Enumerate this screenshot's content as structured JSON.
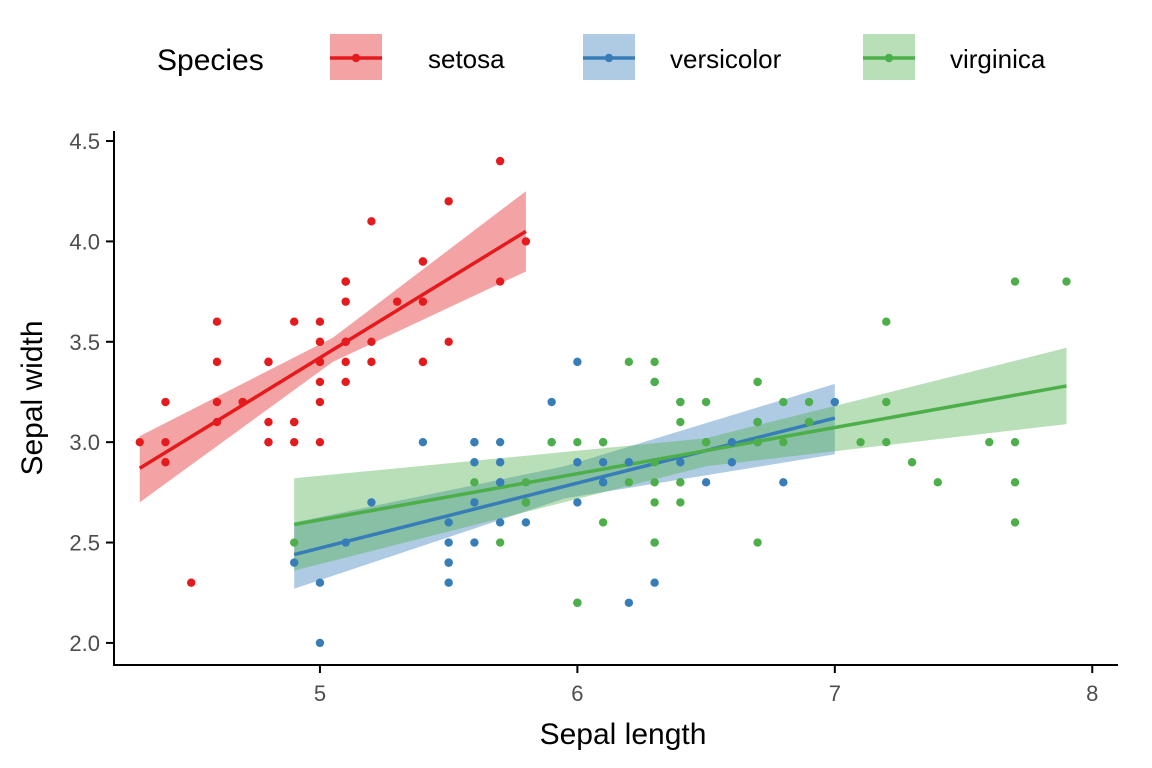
{
  "chart_data": {
    "type": "scatter",
    "xlabel": "Sepal length",
    "ylabel": "Sepal width",
    "xlim": [
      4.2,
      8.1
    ],
    "ylim": [
      1.89,
      4.55
    ],
    "x_ticks": [
      5,
      6,
      7,
      8
    ],
    "y_ticks": [
      2.0,
      2.5,
      3.0,
      3.5,
      4.0,
      4.5
    ],
    "x_tick_labels": [
      "5",
      "6",
      "7",
      "8"
    ],
    "y_tick_labels": [
      "2.0",
      "2.5",
      "3.0",
      "3.5",
      "4.0",
      "4.5"
    ],
    "grid": false,
    "legend": {
      "position": "top",
      "title": "Species"
    },
    "series": [
      {
        "name": "setosa",
        "color": "#E41A1C",
        "fit": {
          "x": [
            4.3,
            5.8
          ],
          "y": [
            2.87,
            4.05
          ]
        },
        "band": {
          "x": [
            4.3,
            5.05,
            5.8
          ],
          "lower": [
            2.7,
            3.4,
            3.85
          ],
          "upper": [
            3.03,
            3.52,
            4.25
          ]
        },
        "points": [
          [
            5.1,
            3.5
          ],
          [
            4.9,
            3.0
          ],
          [
            4.7,
            3.2
          ],
          [
            4.6,
            3.1
          ],
          [
            5.0,
            3.6
          ],
          [
            5.4,
            3.9
          ],
          [
            4.6,
            3.4
          ],
          [
            5.0,
            3.4
          ],
          [
            4.4,
            2.9
          ],
          [
            4.9,
            3.1
          ],
          [
            5.4,
            3.7
          ],
          [
            4.8,
            3.4
          ],
          [
            4.8,
            3.0
          ],
          [
            4.3,
            3.0
          ],
          [
            5.8,
            4.0
          ],
          [
            5.7,
            4.4
          ],
          [
            5.4,
            3.9
          ],
          [
            5.1,
            3.5
          ],
          [
            5.7,
            3.8
          ],
          [
            5.1,
            3.8
          ],
          [
            5.4,
            3.4
          ],
          [
            5.1,
            3.7
          ],
          [
            4.6,
            3.6
          ],
          [
            5.1,
            3.3
          ],
          [
            4.8,
            3.4
          ],
          [
            5.0,
            3.0
          ],
          [
            5.0,
            3.4
          ],
          [
            5.2,
            3.5
          ],
          [
            5.2,
            3.4
          ],
          [
            4.7,
            3.2
          ],
          [
            4.8,
            3.1
          ],
          [
            5.4,
            3.4
          ],
          [
            5.2,
            4.1
          ],
          [
            5.5,
            4.2
          ],
          [
            4.9,
            3.1
          ],
          [
            5.0,
            3.2
          ],
          [
            5.5,
            3.5
          ],
          [
            4.9,
            3.6
          ],
          [
            4.4,
            3.0
          ],
          [
            5.1,
            3.4
          ],
          [
            5.0,
            3.5
          ],
          [
            4.5,
            2.3
          ],
          [
            4.4,
            3.2
          ],
          [
            5.0,
            3.5
          ],
          [
            5.1,
            3.8
          ],
          [
            4.8,
            3.0
          ],
          [
            5.1,
            3.8
          ],
          [
            4.6,
            3.2
          ],
          [
            5.3,
            3.7
          ],
          [
            5.0,
            3.3
          ]
        ]
      },
      {
        "name": "versicolor",
        "color": "#377EB8",
        "fit": {
          "x": [
            4.9,
            7.0
          ],
          "y": [
            2.44,
            3.12
          ]
        },
        "band": {
          "x": [
            4.9,
            5.95,
            7.0
          ],
          "lower": [
            2.27,
            2.72,
            2.94
          ],
          "upper": [
            2.6,
            2.88,
            3.29
          ]
        },
        "points": [
          [
            7.0,
            3.2
          ],
          [
            6.4,
            3.2
          ],
          [
            6.9,
            3.1
          ],
          [
            5.5,
            2.3
          ],
          [
            6.5,
            2.8
          ],
          [
            5.7,
            2.8
          ],
          [
            6.3,
            3.3
          ],
          [
            4.9,
            2.4
          ],
          [
            6.6,
            2.9
          ],
          [
            5.2,
            2.7
          ],
          [
            5.0,
            2.0
          ],
          [
            5.9,
            3.0
          ],
          [
            6.0,
            2.2
          ],
          [
            6.1,
            2.9
          ],
          [
            5.6,
            2.9
          ],
          [
            6.7,
            3.1
          ],
          [
            5.6,
            3.0
          ],
          [
            5.8,
            2.7
          ],
          [
            6.2,
            2.2
          ],
          [
            5.6,
            2.5
          ],
          [
            5.9,
            3.2
          ],
          [
            6.1,
            2.8
          ],
          [
            6.3,
            2.5
          ],
          [
            6.1,
            2.8
          ],
          [
            6.4,
            2.9
          ],
          [
            6.6,
            3.0
          ],
          [
            6.8,
            2.8
          ],
          [
            6.7,
            3.0
          ],
          [
            6.0,
            2.9
          ],
          [
            5.7,
            2.6
          ],
          [
            5.5,
            2.4
          ],
          [
            5.5,
            2.4
          ],
          [
            5.8,
            2.7
          ],
          [
            6.0,
            2.7
          ],
          [
            5.4,
            3.0
          ],
          [
            6.0,
            3.4
          ],
          [
            6.7,
            3.1
          ],
          [
            6.3,
            2.3
          ],
          [
            5.6,
            3.0
          ],
          [
            5.5,
            2.5
          ],
          [
            5.5,
            2.6
          ],
          [
            6.1,
            3.0
          ],
          [
            5.8,
            2.6
          ],
          [
            5.0,
            2.3
          ],
          [
            5.6,
            2.7
          ],
          [
            5.7,
            3.0
          ],
          [
            5.7,
            2.9
          ],
          [
            6.2,
            2.9
          ],
          [
            5.1,
            2.5
          ],
          [
            5.7,
            2.8
          ]
        ]
      },
      {
        "name": "virginica",
        "color": "#4DAF4A",
        "fit": {
          "x": [
            4.9,
            7.9
          ],
          "y": [
            2.59,
            3.28
          ]
        },
        "band": {
          "x": [
            4.9,
            6.5,
            7.9
          ],
          "lower": [
            2.36,
            2.88,
            3.09
          ],
          "upper": [
            2.82,
            3.02,
            3.47
          ]
        },
        "points": [
          [
            6.3,
            3.3
          ],
          [
            5.8,
            2.7
          ],
          [
            7.1,
            3.0
          ],
          [
            6.3,
            2.9
          ],
          [
            6.5,
            3.0
          ],
          [
            7.6,
            3.0
          ],
          [
            4.9,
            2.5
          ],
          [
            7.3,
            2.9
          ],
          [
            6.7,
            2.5
          ],
          [
            7.2,
            3.6
          ],
          [
            6.5,
            3.2
          ],
          [
            6.4,
            2.7
          ],
          [
            6.8,
            3.0
          ],
          [
            5.7,
            2.5
          ],
          [
            5.8,
            2.8
          ],
          [
            6.4,
            3.2
          ],
          [
            6.5,
            3.0
          ],
          [
            7.7,
            3.8
          ],
          [
            7.7,
            2.6
          ],
          [
            6.0,
            2.2
          ],
          [
            6.9,
            3.2
          ],
          [
            5.6,
            2.8
          ],
          [
            7.7,
            2.8
          ],
          [
            6.3,
            2.7
          ],
          [
            6.7,
            3.3
          ],
          [
            7.2,
            3.2
          ],
          [
            6.2,
            2.8
          ],
          [
            6.1,
            3.0
          ],
          [
            6.4,
            2.8
          ],
          [
            7.2,
            3.0
          ],
          [
            7.4,
            2.8
          ],
          [
            7.9,
            3.8
          ],
          [
            6.4,
            2.8
          ],
          [
            6.3,
            2.8
          ],
          [
            6.1,
            2.6
          ],
          [
            7.7,
            3.0
          ],
          [
            6.3,
            3.4
          ],
          [
            6.4,
            3.1
          ],
          [
            6.0,
            3.0
          ],
          [
            6.9,
            3.1
          ],
          [
            6.7,
            3.1
          ],
          [
            6.9,
            3.1
          ],
          [
            5.8,
            2.7
          ],
          [
            6.8,
            3.2
          ],
          [
            6.7,
            3.3
          ],
          [
            6.7,
            3.0
          ],
          [
            6.3,
            2.5
          ],
          [
            6.5,
            3.0
          ],
          [
            6.2,
            3.4
          ],
          [
            5.9,
            3.0
          ]
        ]
      }
    ]
  }
}
